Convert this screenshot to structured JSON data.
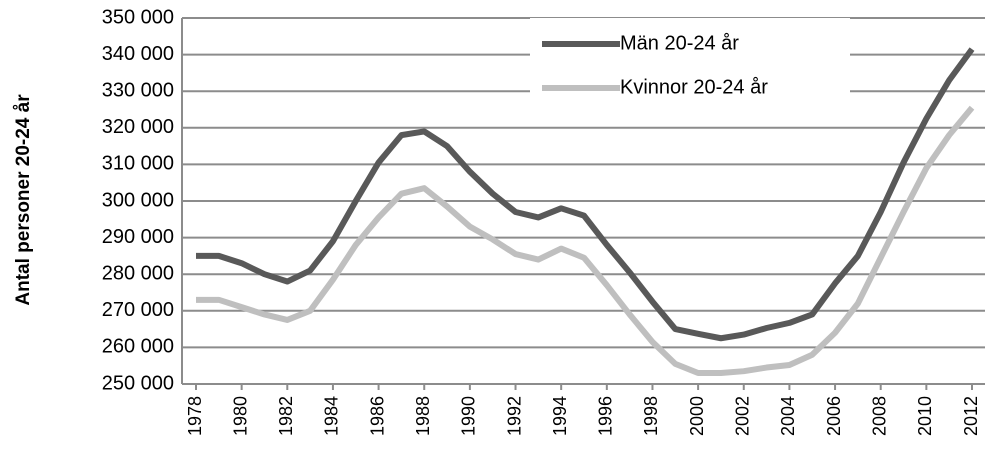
{
  "chart_data": {
    "type": "line",
    "y_label": "Antal personer 20-24 år",
    "x": [
      1978,
      1979,
      1980,
      1981,
      1982,
      1983,
      1984,
      1985,
      1986,
      1987,
      1988,
      1989,
      1990,
      1991,
      1992,
      1993,
      1994,
      1995,
      1996,
      1997,
      1998,
      1999,
      2000,
      2001,
      2002,
      2003,
      2004,
      2005,
      2006,
      2007,
      2008,
      2009,
      2010,
      2011,
      2012
    ],
    "series": [
      {
        "name": "Män 20-24 år",
        "color": "#595959",
        "values": [
          285000,
          285000,
          283000,
          280000,
          278000,
          281000,
          289000,
          300000,
          310500,
          318000,
          319000,
          315000,
          308000,
          302000,
          297000,
          295500,
          298000,
          296000,
          288000,
          280500,
          272500,
          265000,
          263700,
          262500,
          263500,
          265300,
          266700,
          269000,
          277500,
          285000,
          297000,
          310500,
          322500,
          333000,
          341500
        ]
      },
      {
        "name": "Kvinnor 20-24 år",
        "color": "#bfbfbf",
        "values": [
          273000,
          273000,
          271000,
          269000,
          267500,
          270000,
          278500,
          288000,
          295500,
          302000,
          303500,
          298500,
          293000,
          289500,
          285500,
          284000,
          287000,
          284500,
          277000,
          269000,
          261500,
          255500,
          253000,
          253000,
          253500,
          254500,
          255200,
          258000,
          264000,
          272000,
          284500,
          297000,
          309000,
          318000,
          325500
        ]
      }
    ],
    "xlim": [
      1978,
      2012
    ],
    "xticks": [
      1978,
      1980,
      1982,
      1984,
      1986,
      1988,
      1990,
      1992,
      1994,
      1996,
      1998,
      2000,
      2002,
      2004,
      2006,
      2008,
      2010,
      2012
    ],
    "ylim": [
      250000,
      350000
    ],
    "yticks": [
      {
        "value": 250000,
        "label": "250 000"
      },
      {
        "value": 260000,
        "label": "260 000"
      },
      {
        "value": 270000,
        "label": "270 000"
      },
      {
        "value": 280000,
        "label": "280 000"
      },
      {
        "value": 290000,
        "label": "290 000"
      },
      {
        "value": 300000,
        "label": "300 000"
      },
      {
        "value": 310000,
        "label": "310 000"
      },
      {
        "value": 320000,
        "label": "320 000"
      },
      {
        "value": 330000,
        "label": "330 000"
      },
      {
        "value": 340000,
        "label": "340 000"
      },
      {
        "value": 350000,
        "label": "350 000"
      }
    ],
    "grid": true,
    "legend": "upper right"
  }
}
